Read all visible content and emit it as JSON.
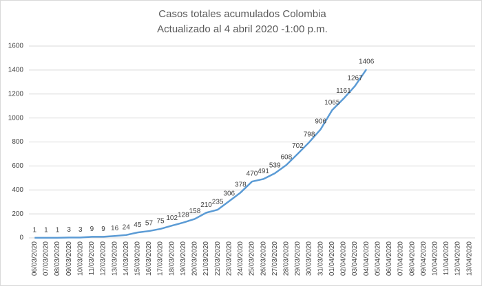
{
  "chart_data": {
    "type": "line",
    "title": "Casos totales acumulados Colombia",
    "subtitle": "Actualizado al 4 abril 2020 -1:00 p.m.",
    "categories": [
      "06/03/2020",
      "07/03/2020",
      "08/03/2020",
      "09/03/2020",
      "10/03/2020",
      "11/03/2020",
      "12/03/2020",
      "13/03/2020",
      "14/03/2020",
      "15/03/2020",
      "16/03/2020",
      "17/03/2020",
      "18/03/2020",
      "19/03/2020",
      "20/03/2020",
      "21/03/2020",
      "22/03/2020",
      "23/03/2020",
      "24/03/2020",
      "25/03/2020",
      "26/03/2020",
      "27/03/2020",
      "28/03/2020",
      "29/03/2020",
      "30/03/2020",
      "31/03/2020",
      "01/04/2020",
      "02/04/2020",
      "03/04/2020",
      "04/04/2020",
      "05/04/2020",
      "06/04/2020",
      "07/04/2020",
      "08/04/2020",
      "09/04/2020",
      "10/04/2020",
      "11/04/2020",
      "12/04/2020",
      "13/04/2020"
    ],
    "values": [
      1,
      1,
      1,
      3,
      3,
      9,
      9,
      16,
      24,
      45,
      57,
      75,
      102,
      128,
      158,
      210,
      235,
      306,
      378,
      470,
      491,
      539,
      608,
      702,
      798,
      906,
      1065,
      1161,
      1267,
      1406,
      null,
      null,
      null,
      null,
      null,
      null,
      null,
      null,
      null
    ],
    "color": "#5b9bd5",
    "ylim": [
      0,
      1600
    ],
    "yticks": [
      0,
      200,
      400,
      600,
      800,
      1000,
      1200,
      1400,
      1600
    ],
    "grid": true
  }
}
